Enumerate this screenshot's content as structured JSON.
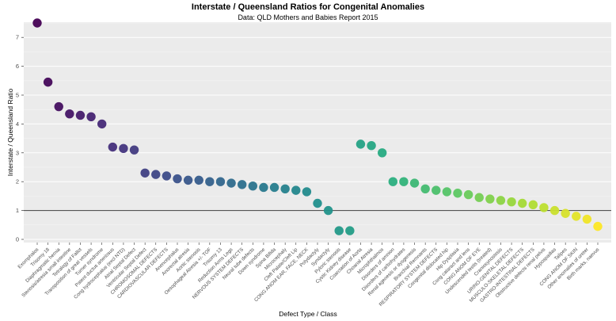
{
  "chart_data": {
    "type": "scatter",
    "title": "Interstate / Queensland Ratios for Congenital Anomalies",
    "subtitle": "Data: QLD Mothers and Babies Report 2015",
    "xlabel": "Defect Type / Class",
    "ylabel": "Interstate / Queensland Ratio",
    "ylim": [
      -0.1,
      7.55
    ],
    "yticks": [
      0,
      1,
      2,
      3,
      4,
      5,
      6,
      7
    ],
    "refline_y": 1,
    "grid": true,
    "legend": "none",
    "panel_bg": "#EBEBEB",
    "gridline_color": "#FFFFFF",
    "refline_color": "#3C3C3C",
    "tick_label_color": "#4D4D4D",
    "palette": [
      "#440154",
      "#472d7b",
      "#3b528b",
      "#2c728e",
      "#21908d",
      "#27ad81",
      "#5dc863",
      "#aadc32",
      "#fde725"
    ],
    "categories": [
      "Exomphalos",
      "Trisomy 18",
      "Diaphragmatic hernia",
      "Stenosis/atresia small intestine",
      "Tetralogy of Fallot",
      "Transposition of great vessels",
      "Turner syndrome",
      "Patent ductus arteriosus",
      "Cong hydrocephalus (excl NTD)",
      "Atrial Septal Defect",
      "Ventricular Septal Defect",
      "CHROMOSOMAL DEFECTS",
      "CARDIOVASCULAR DEFECTS",
      "Anencephalus",
      "Anorectal atresia",
      "Aortic stenosis",
      "Oesophageal Atresia +/- TOF",
      "Trisomy 13",
      "Reduction Arms Legs",
      "NERVOUS SYSTEM DEFECTS",
      "Neural tube defects",
      "Down syndrome",
      "Spina Bifida",
      "Microcephaly",
      "Cleft Palate/Cleft Lip",
      "CONG ANOM EAR, FACE, NECK",
      "Polydactyly",
      "Syndactyly",
      "Pyloric stenosis",
      "Cystic Kidney disease",
      "Coarctation of Aorta",
      "Choanal Atresia",
      "Microphthalmos",
      "Disorders of amnion",
      "Disorders of carbohydrates",
      "Renal agenesis or dysgenesis",
      "Branchial Remnants",
      "RESPIRATORY SYSTEM DEFECTS",
      "Congenital dislocated hip",
      "Hip Dysplasia",
      "Cong cataract and lens",
      "CONG ANOM OF EYE",
      "Undescended testis (treated)",
      "Craniosynostosis",
      "URINO-GENITAL DEFECTS",
      "MUSCULO-SKELETAL DEFECTS",
      "GASTRO-INTESTINAL DEFECTS",
      "Obstructive defects renal pelvis",
      "Hypospadias",
      "Talipes",
      "CONG ANOM OF SKIN",
      "Other anomalies of ureter",
      "Birth marks, naevus"
    ],
    "values": [
      7.5,
      5.45,
      4.6,
      4.35,
      4.3,
      4.25,
      4.0,
      3.2,
      3.15,
      3.1,
      2.3,
      2.25,
      2.2,
      2.1,
      2.05,
      2.05,
      2.0,
      2.0,
      1.95,
      1.9,
      1.85,
      1.8,
      1.8,
      1.75,
      1.7,
      1.65,
      1.25,
      1.0,
      0.3,
      0.3,
      3.3,
      3.25,
      3.0,
      2.0,
      2.0,
      1.95,
      1.75,
      1.7,
      1.65,
      1.6,
      1.55,
      1.45,
      1.4,
      1.35,
      1.3,
      1.25,
      1.2,
      1.1,
      1.0,
      0.9,
      0.8,
      0.7,
      0.45
    ]
  }
}
